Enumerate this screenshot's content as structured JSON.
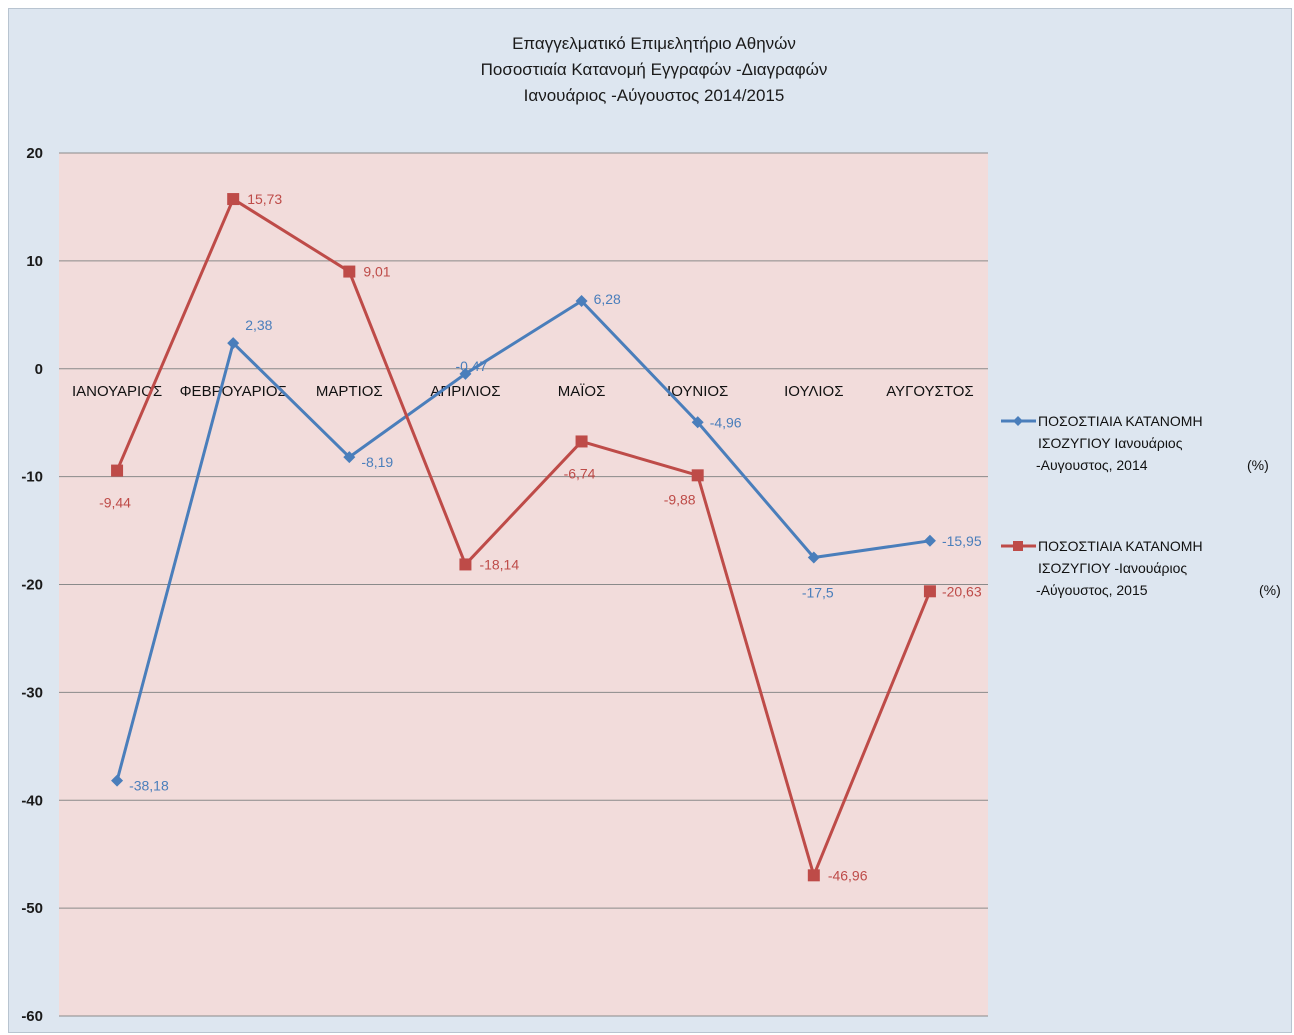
{
  "chart_data": {
    "type": "line",
    "title_lines": [
      "Επαγγελματικό Επιμελητήριο Αθηνών",
      "Ποσοστιαία Κατανομή Εγγραφών -Διαγραφών",
      "Ιανουάριος -Αύγουστος 2014/2015"
    ],
    "categories": [
      "ΙΑΝΟΥΑΡΙΟΣ",
      "ΦΕΒΡΟΥΑΡΙΟΣ",
      "ΜΑΡΤΙΟΣ",
      "ΑΠΡΙΛΙΟΣ",
      "ΜΑΪΟΣ",
      "ΙΟΥΝΙΟΣ",
      "ΙΟΥΛΙΟΣ",
      "ΑΥΓΟΥΣΤΟΣ"
    ],
    "ylim": [
      -60,
      20
    ],
    "yticks": [
      20,
      10,
      0,
      -10,
      -20,
      -30,
      -40,
      -50,
      -60
    ],
    "grid": true,
    "legend_position": "right",
    "plot_background": "#f2dcdb",
    "series": [
      {
        "legend_lines": [
          "ΠΟΣΟΣΤΙΑΙΑ ΚΑΤΑΝΟΜΗ",
          "ΙΣΟΖΥΓΙΟΥ  Ιανουάριος",
          "-Αυγουστος,    2014",
          "(%)"
        ],
        "color": "#4a7ebb",
        "marker": "diamond",
        "values": [
          -38.18,
          2.38,
          -8.19,
          -0.47,
          6.28,
          -4.96,
          -17.5,
          -15.95
        ],
        "labels": [
          "-38,18",
          "2,38",
          "-8,19",
          "-0,47",
          "6,28",
          "-4,96",
          "-17,5",
          "-15,95"
        ]
      },
      {
        "legend_lines": [
          "ΠΟΣΟΣΤΙΑΙΑ ΚΑΤΑΝΟΜΗ",
          "ΙΣΟΖΥΓΙΟΥ -Ιανουάριος",
          "-Αύγουστος,    2015",
          "(%)"
        ],
        "color": "#be4b48",
        "marker": "square",
        "values": [
          -9.44,
          15.73,
          9.01,
          -18.14,
          -6.74,
          -9.88,
          -46.96,
          -20.63
        ],
        "labels": [
          "-9,44",
          "15,73",
          "9,01",
          "-18,14",
          "-6,74",
          "-9,88",
          "-46,96",
          "-20,63"
        ]
      }
    ]
  }
}
